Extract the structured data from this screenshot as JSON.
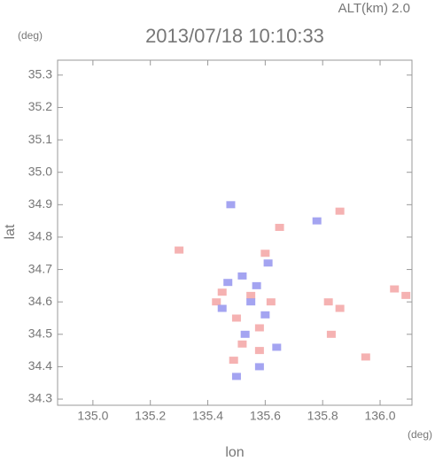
{
  "chart_data": {
    "type": "scatter",
    "title": "2013/07/18 10:10:33",
    "annotation": "ALT(km) 2.0",
    "x_label": "lon",
    "y_label": "lat",
    "x_unit": "(deg)",
    "y_unit": "(deg)",
    "xlim": [
      134.877,
      136.111
    ],
    "ylim": [
      34.281,
      35.346
    ],
    "xticks": [
      {
        "value": 135.0,
        "label": "135.0"
      },
      135.2,
      135.4,
      135.6,
      135.8,
      {
        "value": 136.0,
        "label": "136.0"
      }
    ],
    "yticks": [
      34.3,
      34.4,
      34.5,
      34.6,
      34.7,
      34.8,
      34.9,
      {
        "value": 35.0,
        "label": "35.0"
      },
      35.1,
      35.2,
      35.3
    ],
    "series": [
      {
        "color": "#f4aaaa",
        "x": [
          135.82,
          135.86,
          136.05,
          136.09,
          135.83,
          135.95,
          135.55,
          135.45,
          135.5,
          135.58,
          135.49,
          135.65,
          135.6,
          135.86,
          135.3,
          135.58,
          135.62,
          135.43,
          135.52
        ],
        "y": [
          34.6,
          34.58,
          34.64,
          34.62,
          34.5,
          34.43,
          34.62,
          34.63,
          34.55,
          34.45,
          34.42,
          34.83,
          34.75,
          34.88,
          34.76,
          34.52,
          34.6,
          34.6,
          34.47
        ]
      },
      {
        "color": "#9a9af0",
        "x": [
          135.52,
          135.57,
          135.45,
          135.6,
          135.53,
          135.48,
          135.64,
          135.58,
          135.5,
          135.78,
          135.61,
          135.55,
          135.47
        ],
        "y": [
          34.68,
          34.65,
          34.58,
          34.56,
          34.5,
          34.9,
          34.46,
          34.4,
          34.37,
          34.85,
          34.72,
          34.6,
          34.66
        ]
      }
    ]
  }
}
